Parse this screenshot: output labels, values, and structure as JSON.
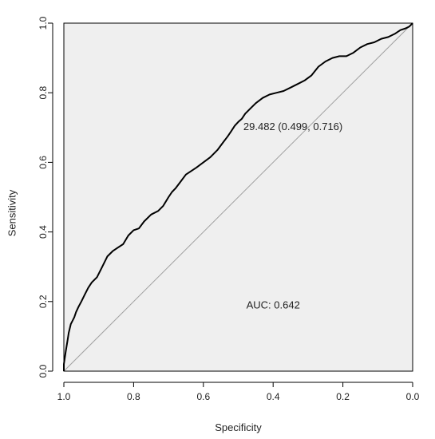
{
  "chart_data": {
    "type": "line",
    "title": "",
    "xlabel": "Specificity",
    "ylabel": "Sensitivity",
    "xlim": [
      1.0,
      0.0
    ],
    "ylim": [
      0.0,
      1.0
    ],
    "x_reversed": true,
    "grid": false,
    "x_ticks": [
      "1.0",
      "0.8",
      "0.6",
      "0.4",
      "0.2",
      "0.0"
    ],
    "y_ticks": [
      "0.0",
      "0.2",
      "0.4",
      "0.6",
      "0.8",
      "1.0"
    ],
    "x_tick_values": [
      1.0,
      0.8,
      0.6,
      0.4,
      0.2,
      0.0
    ],
    "y_tick_values": [
      0.0,
      0.2,
      0.4,
      0.6,
      0.8,
      1.0
    ],
    "colors": {
      "panel": "#efefef",
      "curve": "#000000",
      "reference": "#a0a0a0",
      "frame": "#000000"
    },
    "reference_line": {
      "from": [
        1.0,
        0.0
      ],
      "to": [
        0.0,
        1.0
      ]
    },
    "series": [
      {
        "x": [
          1.0,
          1.0,
          0.997,
          0.994,
          0.99,
          0.986,
          0.98,
          0.975,
          0.97,
          0.965,
          0.958,
          0.95,
          0.94,
          0.93,
          0.92,
          0.905,
          0.89,
          0.875,
          0.86,
          0.845,
          0.83,
          0.815,
          0.8,
          0.785,
          0.77,
          0.75,
          0.73,
          0.715,
          0.7,
          0.69,
          0.68,
          0.665,
          0.65,
          0.635,
          0.62,
          0.6,
          0.58,
          0.56,
          0.545,
          0.53,
          0.52,
          0.51,
          0.5,
          0.49,
          0.48,
          0.465,
          0.45,
          0.43,
          0.41,
          0.39,
          0.37,
          0.35,
          0.33,
          0.31,
          0.29,
          0.27,
          0.25,
          0.23,
          0.21,
          0.19,
          0.17,
          0.15,
          0.13,
          0.11,
          0.09,
          0.07,
          0.05,
          0.035,
          0.02,
          0.01,
          0.0
        ],
        "y": [
          0.0,
          0.02,
          0.04,
          0.06,
          0.085,
          0.11,
          0.135,
          0.145,
          0.155,
          0.17,
          0.185,
          0.2,
          0.22,
          0.24,
          0.255,
          0.27,
          0.3,
          0.33,
          0.345,
          0.355,
          0.365,
          0.39,
          0.405,
          0.41,
          0.43,
          0.45,
          0.46,
          0.475,
          0.5,
          0.515,
          0.525,
          0.545,
          0.565,
          0.575,
          0.585,
          0.6,
          0.615,
          0.635,
          0.655,
          0.675,
          0.69,
          0.705,
          0.716,
          0.725,
          0.74,
          0.755,
          0.77,
          0.785,
          0.795,
          0.8,
          0.805,
          0.815,
          0.825,
          0.835,
          0.85,
          0.875,
          0.89,
          0.9,
          0.905,
          0.905,
          0.915,
          0.93,
          0.94,
          0.945,
          0.955,
          0.96,
          0.97,
          0.98,
          0.985,
          0.99,
          1.0
        ]
      }
    ],
    "annotations": [
      {
        "text": "29.482 (0.499, 0.716)",
        "x": 0.499,
        "y": 0.716
      },
      {
        "text": "AUC: 0.642",
        "x": 0.4,
        "y": 0.18
      }
    ]
  }
}
